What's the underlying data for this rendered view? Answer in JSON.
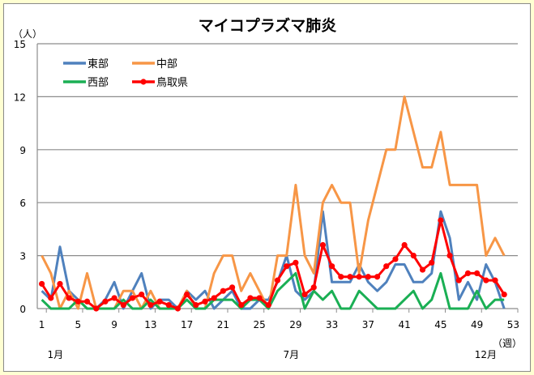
{
  "chart_data": {
    "type": "line",
    "title": "マイコプラズマ肺炎",
    "ylabel": "（人）",
    "xlabel": "（週）",
    "ylim": [
      0,
      15
    ],
    "yticks": [
      0,
      3,
      6,
      9,
      12,
      15
    ],
    "xlim": [
      1,
      53
    ],
    "xticks": [
      1,
      5,
      9,
      13,
      17,
      21,
      25,
      29,
      33,
      37,
      41,
      45,
      49,
      53
    ],
    "month_labels": [
      {
        "label": "1月",
        "week": 2.5
      },
      {
        "label": "7月",
        "week": 28.5
      },
      {
        "label": "12月",
        "week": 50.5
      }
    ],
    "grid": true,
    "legend": "top-left",
    "series": [
      {
        "name": "東部",
        "color": "#4f81bd",
        "markers": false,
        "values": [
          1,
          0.5,
          3.5,
          1,
          0.5,
          0,
          0,
          0.5,
          1.5,
          0,
          1,
          2,
          0,
          0.5,
          0.5,
          0,
          1,
          0.5,
          1,
          0,
          0.5,
          1,
          0,
          0,
          0.5,
          0.5,
          1.5,
          3,
          1,
          0.5,
          1,
          5.5,
          1.5,
          1.5,
          1.5,
          2.5,
          1.5,
          1,
          1.5,
          2.5,
          2.5,
          1.5,
          1.5,
          2,
          5.5,
          4,
          0.5,
          1.5,
          0.5,
          2.5,
          1.5,
          0
        ]
      },
      {
        "name": "中部",
        "color": "#f79646",
        "markers": false,
        "values": [
          3,
          2,
          0,
          1,
          0,
          2,
          0,
          0,
          0,
          1,
          1,
          0,
          1,
          0,
          0,
          0,
          1,
          0,
          0,
          2,
          3,
          3,
          1,
          2,
          1,
          0,
          3,
          3,
          7,
          3,
          2,
          6,
          7,
          6,
          6,
          2,
          5,
          7,
          9,
          9,
          12,
          10,
          8,
          8,
          10,
          7,
          7,
          7,
          7,
          3,
          4,
          3
        ]
      },
      {
        "name": "西部",
        "color": "#1aaf54",
        "markers": false,
        "values": [
          0.5,
          0,
          0,
          0,
          0.5,
          0,
          0,
          0,
          0,
          0.5,
          0,
          0,
          0.5,
          0,
          0,
          0,
          0.5,
          0,
          0,
          0.5,
          0.5,
          0.5,
          0,
          0.5,
          0.5,
          0,
          1,
          1.5,
          2,
          0,
          1,
          0.5,
          1,
          0,
          0,
          1,
          0.5,
          0,
          0,
          0,
          0.5,
          1,
          0,
          0.5,
          2,
          0,
          0,
          0,
          1,
          0,
          0.5,
          0.5
        ]
      },
      {
        "name": "鳥取県",
        "color": "#ff0000",
        "markers": true,
        "values": [
          1.4,
          0.6,
          1.4,
          0.6,
          0.4,
          0.4,
          0,
          0.4,
          0.6,
          0.2,
          0.6,
          0.8,
          0.2,
          0.4,
          0.2,
          0,
          0.8,
          0.2,
          0.4,
          0.6,
          1.0,
          1.2,
          0.2,
          0.6,
          0.6,
          0.2,
          1.6,
          2.4,
          2.6,
          0.8,
          1.2,
          3.6,
          2.4,
          1.8,
          1.8,
          1.8,
          1.8,
          1.8,
          2.4,
          2.8,
          3.6,
          3.0,
          2.2,
          2.6,
          5.0,
          3.0,
          1.6,
          2.0,
          2.0,
          1.6,
          1.6,
          0.8
        ]
      }
    ]
  }
}
